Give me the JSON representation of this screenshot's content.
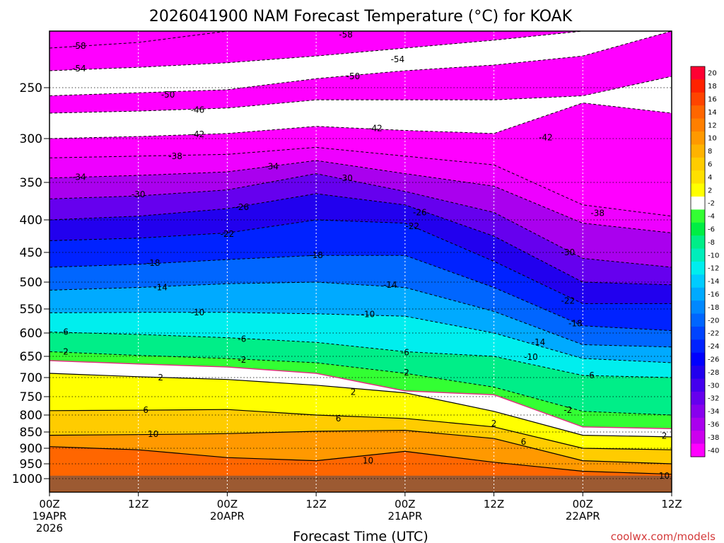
{
  "chart_data": {
    "type": "contour",
    "title": "2026041900 NAM Forecast Temperature (°C) for KOAK",
    "xlabel": "Forecast Time (UTC)",
    "ylabel": "",
    "credit": "coolwx.com/models",
    "x_ticks": [
      {
        "hours": 0,
        "l1": "00Z",
        "l2": "19APR",
        "l3": "2026"
      },
      {
        "hours": 12,
        "l1": "12Z",
        "l2": "",
        "l3": ""
      },
      {
        "hours": 24,
        "l1": "00Z",
        "l2": "20APR",
        "l3": ""
      },
      {
        "hours": 36,
        "l1": "12Z",
        "l2": "",
        "l3": ""
      },
      {
        "hours": 48,
        "l1": "00Z",
        "l2": "21APR",
        "l3": ""
      },
      {
        "hours": 60,
        "l1": "12Z",
        "l2": "",
        "l3": ""
      },
      {
        "hours": 72,
        "l1": "00Z",
        "l2": "22APR",
        "l3": ""
      },
      {
        "hours": 84,
        "l1": "12Z",
        "l2": "",
        "l3": ""
      }
    ],
    "xlim": [
      0,
      84
    ],
    "y_ticks": [
      250,
      300,
      350,
      400,
      450,
      500,
      550,
      600,
      650,
      700,
      750,
      800,
      850,
      900,
      950,
      1000
    ],
    "ylim_hPa": [
      200,
      1000
    ],
    "ground_level_hPa": 990,
    "colorbar": {
      "levels": [
        "20",
        "18",
        "16",
        "14",
        "12",
        "10",
        "8",
        "6",
        "4",
        "2",
        "-2",
        "-4",
        "-6",
        "-8",
        "-10",
        "-12",
        "-14",
        "-16",
        "-18",
        "-20",
        "-22",
        "-24",
        "-26",
        "-28",
        "-30",
        "-32",
        "-34",
        "-36",
        "-38",
        "-40"
      ],
      "colors": [
        "#ff0033",
        "#ff2200",
        "#ff4400",
        "#ff6600",
        "#ff7f00",
        "#ff9900",
        "#ffb300",
        "#ffcc00",
        "#ffe000",
        "#ffff00",
        "#ffffff",
        "#33ff33",
        "#00ee44",
        "#00ee88",
        "#00eebb",
        "#00eeee",
        "#00ccff",
        "#00aaff",
        "#0088ff",
        "#0066ff",
        "#0044ff",
        "#0022ff",
        "#0000ff",
        "#2200ee",
        "#4400ee",
        "#6600ee",
        "#8800ee",
        "#aa00ee",
        "#cc00ee",
        "#ff00ff"
      ]
    },
    "band_colors": {
      "-58": "#ff00ff",
      "-50": "#ff00ff",
      "-42": "#ff00ff",
      "-38": "#ee00ff",
      "-34": "#aa00ee",
      "-30": "#6600ee",
      "-26": "#2200ee",
      "-22": "#0022ff",
      "-18": "#0066ff",
      "-14": "#00aaff",
      "-10": "#00eeee",
      "-6": "#00ee88",
      "-2": "#33ff33",
      "0": "#ffffff",
      "2": "#ffff00",
      "6": "#ffcc00",
      "10": "#ff9900",
      "14": "#ff6600"
    },
    "series": [
      {
        "name": "-58",
        "style": "dashed",
        "x": [
          0,
          12,
          24,
          36,
          48,
          60,
          72,
          84
        ],
        "y": [
          215,
          210,
          200,
          200,
          200,
          200,
          200,
          200
        ]
      },
      {
        "name": "-54",
        "style": "dashed",
        "x": [
          0,
          12,
          24,
          36,
          48,
          60,
          72,
          84
        ],
        "y": [
          235,
          232,
          228,
          222,
          215,
          208,
          200,
          200
        ]
      },
      {
        "name": "-50",
        "style": "dashed",
        "x": [
          0,
          12,
          24,
          36,
          48,
          60,
          72,
          84
        ],
        "y": [
          258,
          255,
          252,
          242,
          235,
          230,
          222,
          200
        ]
      },
      {
        "name": "-46",
        "style": "dashed",
        "x": [
          0,
          12,
          24,
          36,
          48,
          60,
          72,
          84
        ],
        "y": [
          275,
          273,
          270,
          262,
          262,
          262,
          258,
          240
        ]
      },
      {
        "name": "-42",
        "style": "dashed",
        "x": [
          0,
          12,
          24,
          36,
          48,
          60,
          72,
          84
        ],
        "y": [
          300,
          298,
          295,
          288,
          292,
          295,
          265,
          275
        ]
      },
      {
        "name": "-38",
        "style": "dashed",
        "x": [
          0,
          12,
          24,
          36,
          48,
          60,
          72,
          84
        ],
        "y": [
          322,
          320,
          318,
          310,
          320,
          330,
          380,
          395
        ]
      },
      {
        "name": "-34",
        "style": "dashed",
        "x": [
          0,
          12,
          24,
          36,
          48,
          60,
          72,
          84
        ],
        "y": [
          345,
          342,
          338,
          325,
          340,
          355,
          405,
          420
        ]
      },
      {
        "name": "-30",
        "style": "dashed",
        "x": [
          0,
          12,
          24,
          36,
          48,
          60,
          72,
          84
        ],
        "y": [
          372,
          368,
          360,
          340,
          362,
          390,
          460,
          475
        ]
      },
      {
        "name": "-26",
        "style": "dashed",
        "x": [
          0,
          12,
          24,
          36,
          48,
          60,
          72,
          84
        ],
        "y": [
          400,
          395,
          385,
          365,
          380,
          425,
          500,
          505
        ]
      },
      {
        "name": "-22",
        "style": "dashed",
        "x": [
          0,
          12,
          24,
          36,
          48,
          60,
          72,
          84
        ],
        "y": [
          432,
          428,
          420,
          400,
          405,
          465,
          540,
          540
        ]
      },
      {
        "name": "-18",
        "style": "dashed",
        "x": [
          0,
          12,
          24,
          36,
          48,
          60,
          72,
          84
        ],
        "y": [
          475,
          470,
          462,
          455,
          455,
          510,
          585,
          595
        ]
      },
      {
        "name": "-14",
        "style": "dashed",
        "x": [
          0,
          12,
          24,
          36,
          48,
          60,
          72,
          84
        ],
        "y": [
          515,
          510,
          503,
          500,
          510,
          555,
          625,
          630
        ]
      },
      {
        "name": "-10",
        "style": "dashed",
        "x": [
          0,
          12,
          24,
          36,
          48,
          60,
          72,
          84
        ],
        "y": [
          558,
          557,
          557,
          560,
          565,
          600,
          655,
          665
        ]
      },
      {
        "name": "-6",
        "style": "dashed",
        "x": [
          0,
          12,
          24,
          36,
          48,
          60,
          72,
          84
        ],
        "y": [
          598,
          603,
          610,
          620,
          640,
          650,
          695,
          700
        ]
      },
      {
        "name": "-2",
        "style": "dashed",
        "x": [
          0,
          12,
          24,
          36,
          48,
          60,
          72,
          84
        ],
        "y": [
          640,
          648,
          655,
          665,
          690,
          725,
          790,
          800
        ]
      },
      {
        "name": "0",
        "style": "magenta",
        "x": [
          0,
          12,
          24,
          36,
          48,
          60,
          72,
          84
        ],
        "y": [
          660,
          668,
          675,
          690,
          735,
          745,
          835,
          840
        ]
      },
      {
        "name": "2",
        "style": "solid",
        "x": [
          0,
          12,
          24,
          36,
          48,
          60,
          72,
          84
        ],
        "y": [
          690,
          698,
          705,
          720,
          740,
          790,
          860,
          865
        ]
      },
      {
        "name": "6",
        "style": "solid",
        "x": [
          0,
          12,
          24,
          36,
          48,
          60,
          72,
          84
        ],
        "y": [
          788,
          787,
          785,
          800,
          810,
          835,
          900,
          905
        ]
      },
      {
        "name": "10",
        "style": "solid",
        "x": [
          0,
          12,
          24,
          36,
          48,
          60,
          72,
          84
        ],
        "y": [
          860,
          858,
          855,
          848,
          845,
          870,
          940,
          950
        ]
      },
      {
        "name": "14",
        "style": "solid",
        "x": [
          0,
          12,
          24,
          36,
          48,
          60,
          72,
          84
        ],
        "y": [
          895,
          905,
          930,
          940,
          910,
          945,
          975,
          985
        ]
      }
    ],
    "contour_labels": [
      {
        "text": "-58",
        "x": 4,
        "p": 213
      },
      {
        "text": "-58",
        "x": 40,
        "p": 203
      },
      {
        "text": "-54",
        "x": 4,
        "p": 233
      },
      {
        "text": "-54",
        "x": 47,
        "p": 225
      },
      {
        "text": "-50",
        "x": 16,
        "p": 257
      },
      {
        "text": "-50",
        "x": 41,
        "p": 240
      },
      {
        "text": "-46",
        "x": 20,
        "p": 272
      },
      {
        "text": "-42",
        "x": 20,
        "p": 296
      },
      {
        "text": "-42",
        "x": 44,
        "p": 290
      },
      {
        "text": "-42",
        "x": 67,
        "p": 299
      },
      {
        "text": "-38",
        "x": 17,
        "p": 320
      },
      {
        "text": "-38",
        "x": 74,
        "p": 391
      },
      {
        "text": "-34",
        "x": 4,
        "p": 344
      },
      {
        "text": "-34",
        "x": 30,
        "p": 332
      },
      {
        "text": "-30",
        "x": 12,
        "p": 366
      },
      {
        "text": "-30",
        "x": 40,
        "p": 345
      },
      {
        "text": "-30",
        "x": 70,
        "p": 450
      },
      {
        "text": "-26",
        "x": 26,
        "p": 383
      },
      {
        "text": "-26",
        "x": 50,
        "p": 390
      },
      {
        "text": "-22",
        "x": 24,
        "p": 422
      },
      {
        "text": "-22",
        "x": 49,
        "p": 410
      },
      {
        "text": "-22",
        "x": 70,
        "p": 535
      },
      {
        "text": "-18",
        "x": 14,
        "p": 468
      },
      {
        "text": "-18",
        "x": 36,
        "p": 455
      },
      {
        "text": "-18",
        "x": 71,
        "p": 580
      },
      {
        "text": "-14",
        "x": 15,
        "p": 510
      },
      {
        "text": "-14",
        "x": 46,
        "p": 505
      },
      {
        "text": "-14",
        "x": 66,
        "p": 620
      },
      {
        "text": "-10",
        "x": 20,
        "p": 557
      },
      {
        "text": "-10",
        "x": 43,
        "p": 561
      },
      {
        "text": "-10",
        "x": 65,
        "p": 652
      },
      {
        "text": "-6",
        "x": 2,
        "p": 598
      },
      {
        "text": "-6",
        "x": 26,
        "p": 613
      },
      {
        "text": "-6",
        "x": 48,
        "p": 642
      },
      {
        "text": "-6",
        "x": 73,
        "p": 695
      },
      {
        "text": "-2",
        "x": 2,
        "p": 640
      },
      {
        "text": "-2",
        "x": 26,
        "p": 658
      },
      {
        "text": "-2",
        "x": 48,
        "p": 688
      },
      {
        "text": "-2",
        "x": 70,
        "p": 787
      },
      {
        "text": "2",
        "x": 15,
        "p": 700
      },
      {
        "text": "2",
        "x": 41,
        "p": 738
      },
      {
        "text": "2",
        "x": 60,
        "p": 825
      },
      {
        "text": "2",
        "x": 83,
        "p": 862
      },
      {
        "text": "6",
        "x": 13,
        "p": 787
      },
      {
        "text": "6",
        "x": 39,
        "p": 810
      },
      {
        "text": "6",
        "x": 64,
        "p": 880
      },
      {
        "text": "10",
        "x": 14,
        "p": 857
      },
      {
        "text": "10",
        "x": 43,
        "p": 940
      },
      {
        "text": "10",
        "x": 83,
        "p": 990
      }
    ]
  }
}
